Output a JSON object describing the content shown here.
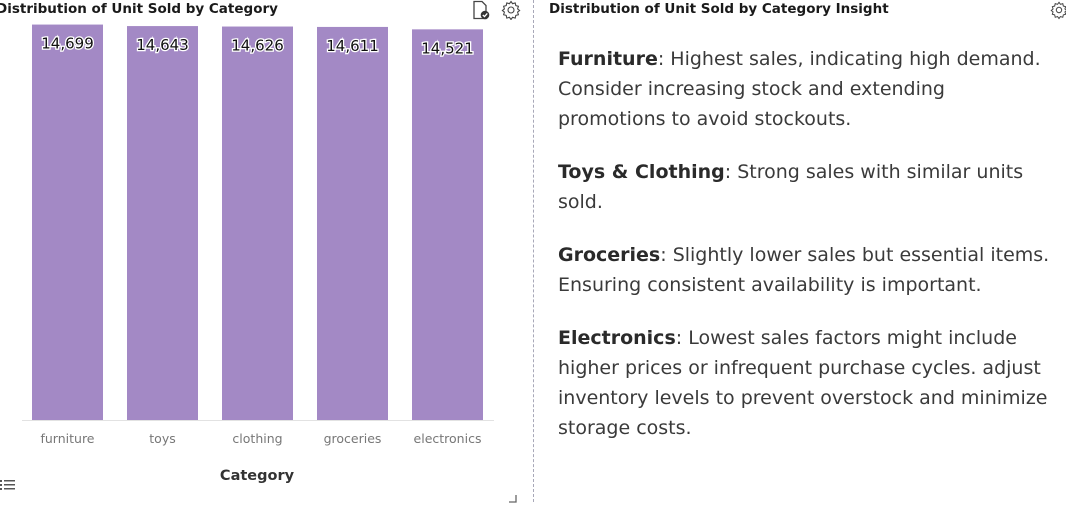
{
  "left_panel": {
    "title": "Distribution of Unit Sold by Category",
    "icons": [
      "document-check-icon",
      "gear-icon",
      "list-icon",
      "resize-handle-icon"
    ]
  },
  "right_panel": {
    "title": "Distribution of Unit Sold by Category Insight",
    "icons": [
      "gear-icon"
    ],
    "insights": [
      {
        "term": "Furniture",
        "text": ": Highest sales, indicating high demand. Consider increasing stock and extending promotions to avoid stockouts."
      },
      {
        "term": "Toys & Clothing",
        "text": ": Strong sales with similar units sold."
      },
      {
        "term": "Groceries",
        "text": ": Slightly lower sales but essential items. Ensuring consistent availability is important."
      },
      {
        "term": "Electronics",
        "text": ": Lowest sales factors might include higher prices or infrequent purchase cycles. adjust inventory levels to prevent overstock and minimize storage costs."
      }
    ]
  },
  "colors": {
    "bar": "#a389c5",
    "axis_text": "#777777",
    "title_text": "#1a1a1a"
  },
  "chart_data": {
    "type": "bar",
    "categories": [
      "furniture",
      "toys",
      "clothing",
      "groceries",
      "electronics"
    ],
    "values": [
      14699,
      14643,
      14626,
      14611,
      14521
    ],
    "data_labels": [
      "14,699",
      "14,643",
      "14,626",
      "14,611",
      "14,521"
    ],
    "title": "Distribution of Unit Sold by Category",
    "xlabel": "Category",
    "ylabel": "",
    "ylim": [
      0,
      14720
    ],
    "grid": false,
    "legend": "none"
  }
}
